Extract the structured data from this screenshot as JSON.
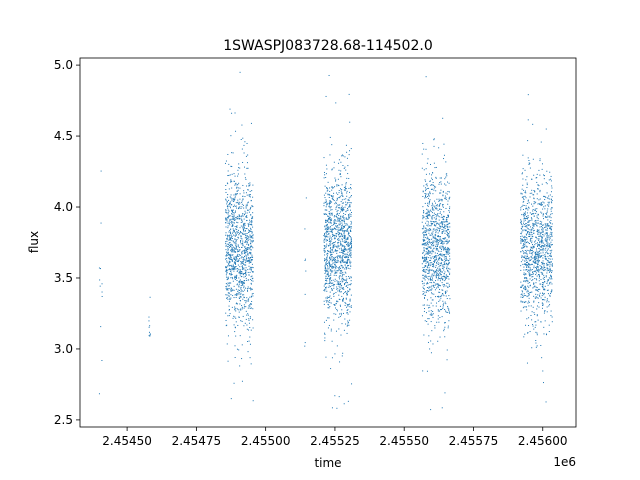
{
  "chart_data": {
    "type": "scatter",
    "title": "1SWASPJ083728.68-114502.0",
    "xlabel": "time",
    "ylabel": "flux",
    "x_offset_label": "1e6",
    "xlim": [
      2454330,
      2456120
    ],
    "ylim": [
      2.45,
      5.05
    ],
    "x_ticks": [
      2454500,
      2454750,
      2455000,
      2455250,
      2455500,
      2455750,
      2456000
    ],
    "x_tick_labels": [
      "2.45450",
      "2.45475",
      "2.45500",
      "2.45525",
      "2.45550",
      "2.45575",
      "2.45600"
    ],
    "y_ticks": [
      2.5,
      3.0,
      3.5,
      4.0,
      4.5,
      5.0
    ],
    "y_tick_labels": [
      "2.5",
      "3.0",
      "3.5",
      "4.0",
      "4.5",
      "5.0"
    ],
    "marker_color": "#1f77b4",
    "grid": false,
    "series": [
      {
        "clusters": [
          {
            "x_range": [
              2454400,
              2454410
            ],
            "y_center": 3.65,
            "y_spread": 0.35,
            "count": 12
          },
          {
            "x_range": [
              2454575,
              2454585
            ],
            "y_center": 3.2,
            "y_spread": 0.12,
            "count": 10
          },
          {
            "x_range": [
              2454855,
              2454955
            ],
            "y_center": 3.72,
            "y_spread": 0.27,
            "count": 1100
          },
          {
            "x_range": [
              2455140,
              2455150
            ],
            "y_center": 3.55,
            "y_spread": 0.35,
            "count": 8
          },
          {
            "x_range": [
              2455210,
              2455310
            ],
            "y_center": 3.72,
            "y_spread": 0.27,
            "count": 1150
          },
          {
            "x_range": [
              2455565,
              2455665
            ],
            "y_center": 3.7,
            "y_spread": 0.25,
            "count": 1050
          },
          {
            "x_range": [
              2455920,
              2456035
            ],
            "y_center": 3.7,
            "y_spread": 0.26,
            "count": 1100
          }
        ]
      }
    ]
  }
}
